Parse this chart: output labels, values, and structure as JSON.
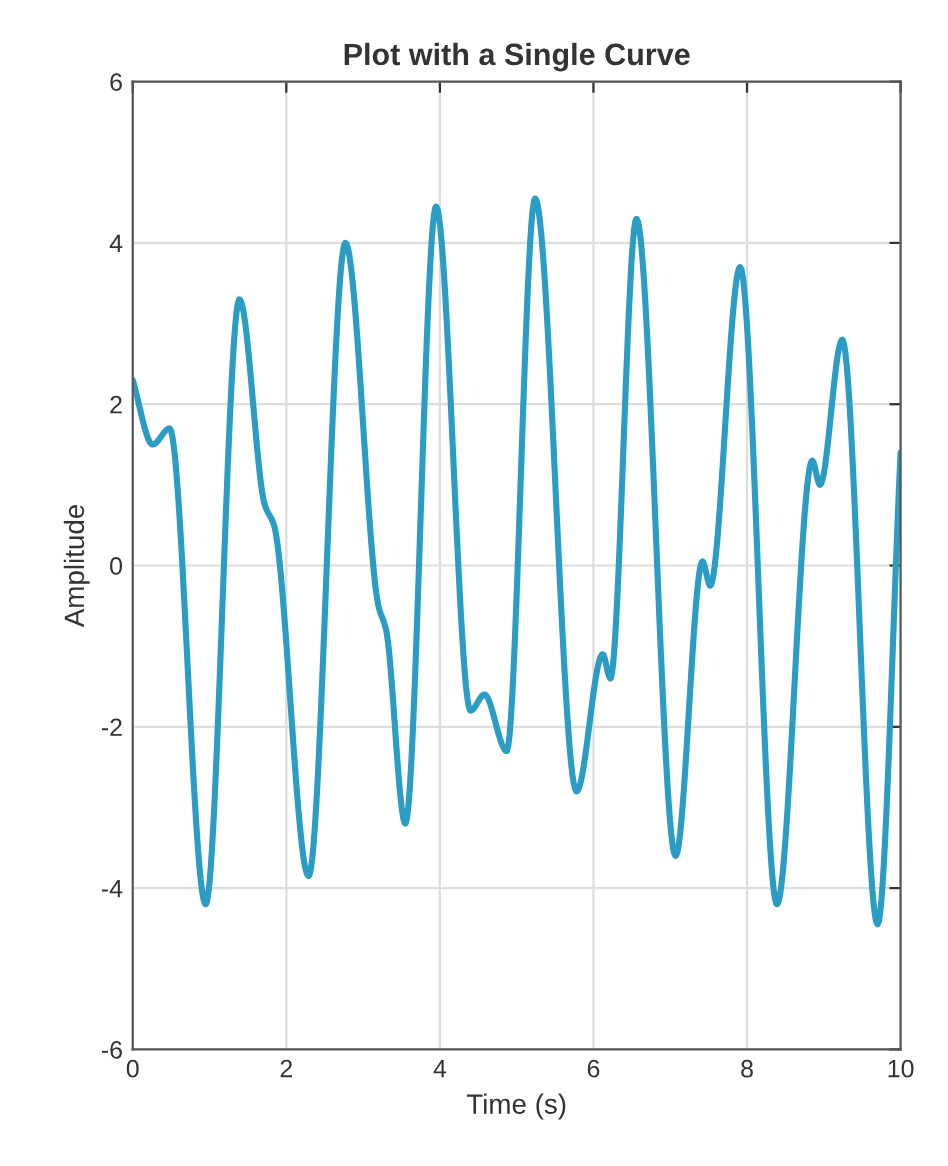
{
  "chart_data": {
    "type": "line",
    "title": "Plot with a Single Curve",
    "xlabel": "Time (s)",
    "ylabel": "Amplitude",
    "series": [
      {
        "color": "#2b9cc4",
        "x": [
          0,
          0.26,
          0.48,
          0.95,
          1.39,
          1.72,
          1.84,
          2.29,
          2.77,
          3.2,
          3.3,
          3.55,
          3.95,
          4.4,
          4.58,
          4.87,
          5.24,
          5.78,
          6.12,
          6.22,
          6.56,
          7.07,
          7.42,
          7.52,
          7.91,
          8.39,
          8.85,
          8.95,
          9.24,
          9.7,
          10
        ],
        "values": [
          2.3,
          1.5,
          1.7,
          -4.2,
          3.3,
          0.75,
          0.5,
          -3.85,
          4.0,
          -0.5,
          -0.8,
          -3.2,
          4.45,
          -1.8,
          -1.6,
          -2.3,
          4.55,
          -2.8,
          -1.1,
          -1.4,
          4.3,
          -3.6,
          0.05,
          -0.25,
          3.7,
          -4.2,
          1.3,
          1.0,
          2.8,
          -4.45,
          1.4
        ]
      }
    ],
    "xlim": [
      0,
      10
    ],
    "xticks": [
      0,
      2,
      4,
      6,
      8,
      10
    ],
    "ylim": [
      -6,
      6
    ],
    "yticks": [
      -6,
      -4,
      -2,
      0,
      2,
      4,
      6
    ],
    "grid": true,
    "line_style": "solid",
    "marker": "none"
  }
}
